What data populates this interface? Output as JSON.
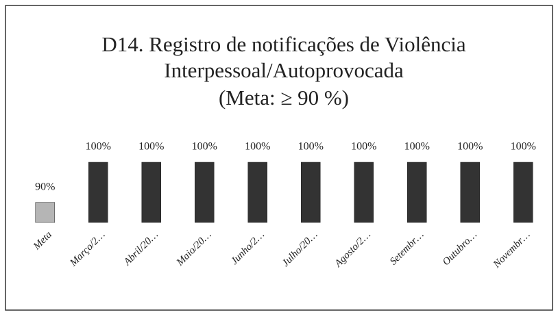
{
  "chart_data": {
    "type": "bar",
    "title": [
      "D14. Registro de notificações de Violência",
      "Interpessoal/Autoprovocada",
      "(Meta: ≥ 90 %)"
    ],
    "categories": [
      "Meta",
      "Março/2…",
      "Abril/20…",
      "Maio/20…",
      "Junho/2…",
      "Julho/20…",
      "Agosto/2…",
      "Setembr…",
      "Outubro…",
      "Novembr…"
    ],
    "values": [
      90,
      100,
      100,
      100,
      100,
      100,
      100,
      100,
      100,
      100
    ],
    "value_labels": [
      "90%",
      "100%",
      "100%",
      "100%",
      "100%",
      "100%",
      "100%",
      "100%",
      "100%",
      "100%"
    ],
    "colors": [
      "#b5b5b5",
      "#333333",
      "#333333",
      "#333333",
      "#333333",
      "#333333",
      "#333333",
      "#333333",
      "#333333",
      "#333333"
    ],
    "ylim": [
      85,
      100
    ]
  }
}
